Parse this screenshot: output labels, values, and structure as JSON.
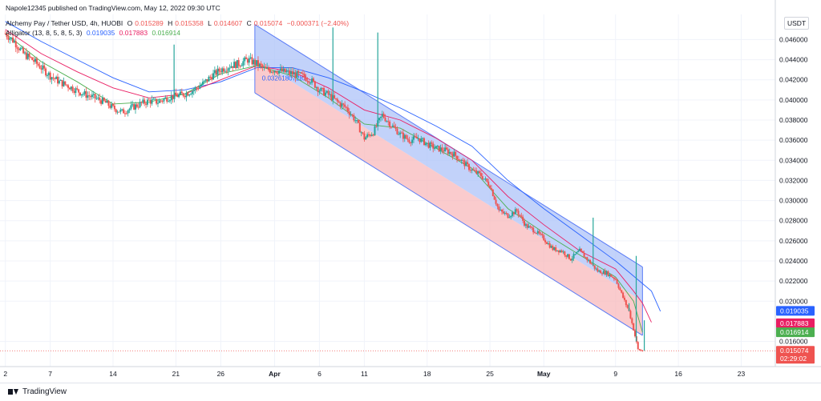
{
  "publisher": "Napole12345 published on TradingView.com, May 12, 2022 09:30 UTC",
  "legend": {
    "symbol": "Alchemy Pay / Tether USD, 4h, HUOBI",
    "o_label": "O",
    "o": "0.015289",
    "h_label": "H",
    "h": "0.015358",
    "l_label": "L",
    "l": "0.014607",
    "c_label": "C",
    "c": "0.015074",
    "change": "−0.000371 (−2.40%)",
    "indicator": "Alligator (13, 8, 5, 8, 5, 3)",
    "jaw": "0.019035",
    "teeth": "0.017883",
    "lips": "0.016914"
  },
  "currency": "USDT",
  "channel_label": "0.03261807282",
  "brand": "TradingView",
  "colors": {
    "up": "#26a69a",
    "down": "#ef5350",
    "jaw": "#2962ff",
    "teeth": "#e91e63",
    "lips": "#4caf50",
    "channel_upper": "#aec3f8",
    "channel_lower": "#f8b9bc"
  },
  "chart_data": {
    "type": "line",
    "title": "Alchemy Pay / Tether USD, 4h, HUOBI",
    "x_ticks": [
      {
        "label": "2",
        "day": 2
      },
      {
        "label": "7",
        "day": 7
      },
      {
        "label": "14",
        "day": 14
      },
      {
        "label": "21",
        "day": 21
      },
      {
        "label": "26",
        "day": 26
      },
      {
        "label": "Apr",
        "day": 32,
        "bold": true
      },
      {
        "label": "6",
        "day": 37
      },
      {
        "label": "11",
        "day": 42
      },
      {
        "label": "18",
        "day": 49
      },
      {
        "label": "25",
        "day": 56
      },
      {
        "label": "May",
        "day": 62,
        "bold": true
      },
      {
        "label": "9",
        "day": 70
      },
      {
        "label": "16",
        "day": 77
      },
      {
        "label": "23",
        "day": 84
      }
    ],
    "x_range": [
      1.4,
      87.8
    ],
    "y_ticks": [
      "0.046000",
      "0.044000",
      "0.042000",
      "0.040000",
      "0.038000",
      "0.036000",
      "0.034000",
      "0.032000",
      "0.030000",
      "0.028000",
      "0.026000",
      "0.024000",
      "0.022000",
      "0.020000",
      "0.016000"
    ],
    "ylim": [
      0.0135,
      0.0485
    ],
    "price_series": [
      [
        2,
        0.0466
      ],
      [
        3,
        0.0458
      ],
      [
        4,
        0.0446
      ],
      [
        5,
        0.044
      ],
      [
        6,
        0.0432
      ],
      [
        7,
        0.0424
      ],
      [
        8,
        0.0418
      ],
      [
        9,
        0.0414
      ],
      [
        10,
        0.0409
      ],
      [
        11,
        0.0405
      ],
      [
        12,
        0.0402
      ],
      [
        13,
        0.0398
      ],
      [
        14,
        0.0392
      ],
      [
        15,
        0.0388
      ],
      [
        16,
        0.0392
      ],
      [
        17,
        0.0396
      ],
      [
        18,
        0.0399
      ],
      [
        19,
        0.0398
      ],
      [
        20,
        0.0402
      ],
      [
        21,
        0.0404
      ],
      [
        22,
        0.0406
      ],
      [
        23,
        0.041
      ],
      [
        24,
        0.0416
      ],
      [
        25,
        0.0424
      ],
      [
        26,
        0.043
      ],
      [
        27,
        0.0434
      ],
      [
        28,
        0.0436
      ],
      [
        29,
        0.044
      ],
      [
        30,
        0.0436
      ],
      [
        31,
        0.043
      ],
      [
        32,
        0.043
      ],
      [
        33,
        0.0428
      ],
      [
        34,
        0.0426
      ],
      [
        35,
        0.0424
      ],
      [
        36,
        0.042
      ],
      [
        37,
        0.041
      ],
      [
        38,
        0.0405
      ],
      [
        39,
        0.0398
      ],
      [
        40,
        0.0392
      ],
      [
        41,
        0.038
      ],
      [
        42,
        0.0362
      ],
      [
        43,
        0.0368
      ],
      [
        44,
        0.0385
      ],
      [
        45,
        0.0375
      ],
      [
        46,
        0.0366
      ],
      [
        47,
        0.036
      ],
      [
        48,
        0.0362
      ],
      [
        49,
        0.0356
      ],
      [
        50,
        0.0352
      ],
      [
        51,
        0.035
      ],
      [
        52,
        0.0346
      ],
      [
        53,
        0.0338
      ],
      [
        54,
        0.033
      ],
      [
        55,
        0.0325
      ],
      [
        56,
        0.0315
      ],
      [
        57,
        0.029
      ],
      [
        58,
        0.0285
      ],
      [
        59,
        0.029
      ],
      [
        60,
        0.0275
      ],
      [
        61,
        0.027
      ],
      [
        62,
        0.0262
      ],
      [
        63,
        0.0252
      ],
      [
        64,
        0.025
      ],
      [
        65,
        0.0242
      ],
      [
        66,
        0.025
      ],
      [
        67,
        0.024
      ],
      [
        68,
        0.023
      ],
      [
        69,
        0.0228
      ],
      [
        70,
        0.0222
      ],
      [
        71,
        0.02
      ],
      [
        71.5,
        0.019
      ],
      [
        72,
        0.0172
      ],
      [
        72.5,
        0.0152
      ],
      [
        73,
        0.01507
      ]
    ],
    "jaw_series": [
      [
        2,
        0.0478
      ],
      [
        6,
        0.0458
      ],
      [
        10,
        0.044
      ],
      [
        14,
        0.0422
      ],
      [
        18,
        0.0408
      ],
      [
        22,
        0.041
      ],
      [
        26,
        0.0418
      ],
      [
        30,
        0.0432
      ],
      [
        34,
        0.0432
      ],
      [
        38,
        0.0422
      ],
      [
        42,
        0.0408
      ],
      [
        46,
        0.0392
      ],
      [
        50,
        0.0374
      ],
      [
        54,
        0.0354
      ],
      [
        58,
        0.032
      ],
      [
        62,
        0.0292
      ],
      [
        66,
        0.0266
      ],
      [
        70,
        0.024
      ],
      [
        72,
        0.0225
      ],
      [
        74,
        0.021
      ],
      [
        75,
        0.019
      ]
    ],
    "teeth_series": [
      [
        2,
        0.047
      ],
      [
        6,
        0.0446
      ],
      [
        10,
        0.0428
      ],
      [
        14,
        0.0412
      ],
      [
        18,
        0.0402
      ],
      [
        22,
        0.0406
      ],
      [
        26,
        0.042
      ],
      [
        30,
        0.0434
      ],
      [
        34,
        0.0428
      ],
      [
        38,
        0.0412
      ],
      [
        42,
        0.039
      ],
      [
        46,
        0.038
      ],
      [
        50,
        0.0362
      ],
      [
        54,
        0.034
      ],
      [
        58,
        0.0304
      ],
      [
        62,
        0.0276
      ],
      [
        66,
        0.025
      ],
      [
        70,
        0.0232
      ],
      [
        72,
        0.021
      ],
      [
        73,
        0.0198
      ],
      [
        74,
        0.0179
      ]
    ],
    "lips_series": [
      [
        2,
        0.0466
      ],
      [
        6,
        0.0438
      ],
      [
        10,
        0.0418
      ],
      [
        14,
        0.0396
      ],
      [
        18,
        0.0398
      ],
      [
        22,
        0.0406
      ],
      [
        26,
        0.0426
      ],
      [
        30,
        0.0434
      ],
      [
        34,
        0.0424
      ],
      [
        38,
        0.0402
      ],
      [
        42,
        0.0376
      ],
      [
        46,
        0.0372
      ],
      [
        50,
        0.0352
      ],
      [
        54,
        0.0332
      ],
      [
        58,
        0.0292
      ],
      [
        62,
        0.0268
      ],
      [
        66,
        0.0246
      ],
      [
        70,
        0.0224
      ],
      [
        72,
        0.02
      ],
      [
        73,
        0.0169
      ]
    ],
    "channel": {
      "top_start": [
        29.8,
        0.0475
      ],
      "top_end": [
        73.0,
        0.0234
      ],
      "mid_start": [
        29.8,
        0.0441
      ],
      "mid_end": [
        73.0,
        0.02
      ],
      "bot_start": [
        29.8,
        0.0407
      ],
      "bot_end": [
        73.0,
        0.0166
      ]
    },
    "spikes": [
      [
        20.8,
        0.0455
      ],
      [
        38.5,
        0.0472
      ],
      [
        43.5,
        0.0467
      ],
      [
        67.5,
        0.0283
      ],
      [
        72.3,
        0.0245
      ],
      [
        71.5,
        0.0198
      ],
      [
        73.2,
        0.0181
      ]
    ],
    "last_price_line": 0.015074,
    "price_labels": [
      {
        "text": "0.019035",
        "value": 0.019035,
        "color": "#2962ff"
      },
      {
        "text": "0.017883",
        "value": 0.017883,
        "color": "#e91e63"
      },
      {
        "text": "0.016914",
        "value": 0.016914,
        "color": "#4caf50"
      },
      {
        "text": "0.015074",
        "value": 0.015074,
        "color": "#ef5350"
      }
    ],
    "countdown": "02:29:02"
  }
}
